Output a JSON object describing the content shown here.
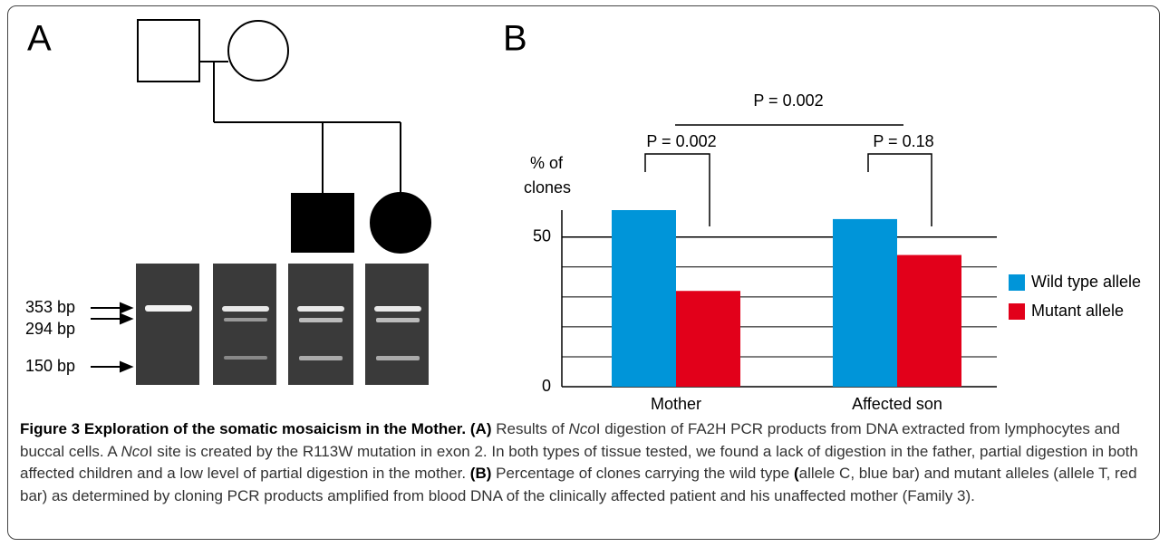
{
  "panel_a": {
    "label": "A",
    "band_labels": [
      "353 bp",
      "294 bp",
      "150 bp"
    ]
  },
  "chart_data": {
    "type": "bar",
    "label": "B",
    "y_label": [
      "% of",
      "clones"
    ],
    "categories": [
      "Mother",
      "Affected son"
    ],
    "series": [
      {
        "name": "Wild type allele",
        "color": "#0095d9",
        "values": [
          59,
          56
        ]
      },
      {
        "name": "Mutant allele",
        "color": "#e2001a",
        "values": [
          32,
          44
        ]
      }
    ],
    "ylim": [
      0,
      59
    ],
    "yticks": [
      0,
      50
    ],
    "grid_values": [
      10,
      20,
      30,
      40,
      50
    ],
    "grid": true,
    "annotations": [
      "P = 0.002",
      "P = 0.002",
      "P = 0.18"
    ]
  },
  "caption": [
    {
      "text": "Figure 3 Exploration of the somatic mosaicism in the Mother.",
      "style": "bold"
    },
    {
      "text": " (A)",
      "style": "bold"
    },
    {
      "text": " Results of "
    },
    {
      "text": "Nco",
      "style": "italic"
    },
    {
      "text": "I digestion of FA2H PCR products from DNA extracted from lymphocytes and buccal cells. A "
    },
    {
      "text": "Nco",
      "style": "italic"
    },
    {
      "text": "I site is created by the R113W mutation in exon 2. In both types of tissue tested, we found a lack of digestion in the father, partial digestion in both affected children and a low level of partial digestion in the mother. "
    },
    {
      "text": "(B)",
      "style": "bold"
    },
    {
      "text": " Percentage of clones carrying the wild type "
    },
    {
      "text": "(",
      "style": "bold"
    },
    {
      "text": "allele C, blue bar) and mutant alleles (allele T, red bar) as determined by cloning PCR products amplified from blood DNA of the clinically affected patient and his unaffected mother (Family 3)."
    }
  ]
}
